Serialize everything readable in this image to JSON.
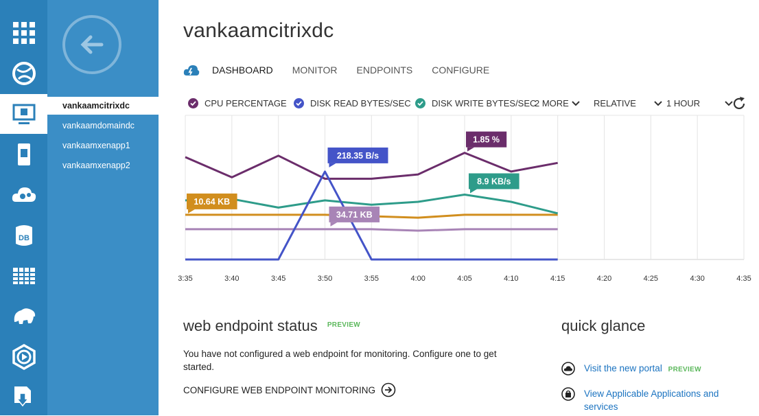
{
  "nav_icons": [
    {
      "name": "all-items-grid-icon"
    },
    {
      "name": "websites-globe-icon"
    },
    {
      "name": "virtual-machines-icon"
    },
    {
      "name": "mobile-services-icon"
    },
    {
      "name": "cloud-services-icon"
    },
    {
      "name": "sql-databases-icon"
    },
    {
      "name": "storage-table-icon"
    },
    {
      "name": "hdinsight-elephant-icon"
    },
    {
      "name": "media-services-icon"
    },
    {
      "name": "import-export-icon"
    }
  ],
  "vm_list": {
    "items": [
      {
        "label": "vankaamcitrixdc",
        "active": true
      },
      {
        "label": "vankaamdomaindc",
        "active": false
      },
      {
        "label": "vankaamxenapp1",
        "active": false
      },
      {
        "label": "vankaamxenapp2",
        "active": false
      }
    ]
  },
  "header": {
    "title": "vankaamcitrixdc",
    "tabs": [
      {
        "label": "DASHBOARD",
        "active": true
      },
      {
        "label": "MONITOR",
        "active": false
      },
      {
        "label": "ENDPOINTS",
        "active": false
      },
      {
        "label": "CONFIGURE",
        "active": false
      }
    ]
  },
  "metrics_bar": {
    "metrics": [
      "CPU PERCENTAGE",
      "DISK READ BYTES/SEC",
      "DISK WRITE BYTES/SEC"
    ],
    "more_label": "2 MORE",
    "scale_label": "RELATIVE",
    "range_label": "1 HOUR"
  },
  "colors": {
    "cpu": "#6b2d6b",
    "disk_read": "#4454c8",
    "disk_write": "#2e9c8a",
    "network_in": "#d18e1e",
    "network_out": "#a884b6",
    "nav_rail": "#2b80b9",
    "vm_panel": "#3b8ec6"
  },
  "chart_data": {
    "type": "line",
    "x": [
      "3:35",
      "3:40",
      "3:45",
      "3:50",
      "3:55",
      "4:00",
      "4:05",
      "4:10",
      "4:15"
    ],
    "x_ticks": [
      "3:35",
      "3:40",
      "3:45",
      "3:50",
      "3:55",
      "4:00",
      "4:05",
      "4:10",
      "4:15",
      "4:20",
      "4:25",
      "4:30",
      "4:35"
    ],
    "scale": "relative",
    "series": [
      {
        "name": "CPU PERCENTAGE",
        "color": "#6b2d6b",
        "rel": [
          0.71,
          0.57,
          0.72,
          0.56,
          0.56,
          0.59,
          0.74,
          0.61,
          0.67
        ],
        "label": "1.85 %",
        "label_index": 6
      },
      {
        "name": "DISK READ BYTES/SEC",
        "color": "#4454c8",
        "rel": [
          0.0,
          0.0,
          0.0,
          0.61,
          0.0,
          0.0,
          0.0,
          0.0,
          0.0
        ],
        "label": "218.35 B/s",
        "label_index": 3
      },
      {
        "name": "DISK WRITE BYTES/SEC",
        "color": "#2e9c8a",
        "rel": [
          0.41,
          0.42,
          0.36,
          0.41,
          0.38,
          0.4,
          0.45,
          0.4,
          0.32
        ],
        "label": "8.9 KB/s",
        "label_index": 6
      },
      {
        "color": "#d18e1e",
        "rel": [
          0.31,
          0.31,
          0.31,
          0.31,
          0.3,
          0.29,
          0.31,
          0.31,
          0.31
        ],
        "label": "10.64 KB",
        "label_index": 0
      },
      {
        "color": "#a884b6",
        "rel": [
          0.21,
          0.21,
          0.21,
          0.21,
          0.21,
          0.2,
          0.21,
          0.21,
          0.21
        ],
        "label": "34.71 KB",
        "label_index": 3
      }
    ]
  },
  "endpoint_status": {
    "title": "web endpoint status",
    "badge": "PREVIEW",
    "message": "You have not configured a web endpoint for monitoring. Configure one to get started.",
    "configure_label": "CONFIGURE WEB ENDPOINT MONITORING"
  },
  "quick_glance": {
    "title": "quick glance",
    "links": [
      {
        "label": "Visit the new portal",
        "badge": "PREVIEW"
      },
      {
        "label": "View Applicable Applications and services"
      }
    ]
  }
}
